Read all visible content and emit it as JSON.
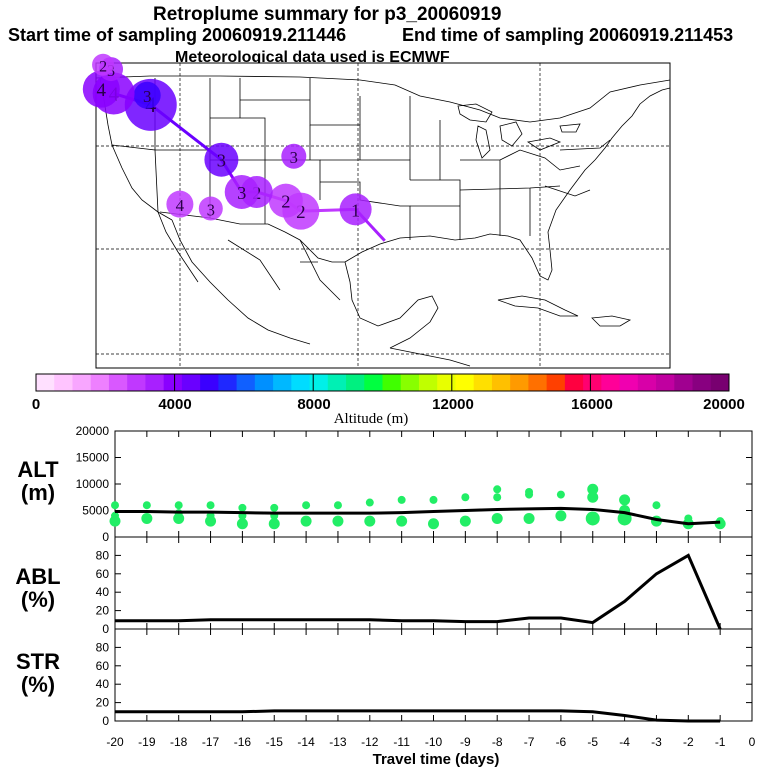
{
  "header": {
    "title": "Retroplume summary for p3_20060919",
    "start_label": "Start time of sampling 20060919.211446",
    "end_label": "End time of sampling 20060919.211453",
    "met_label": "Meteorological data used is ECMWF"
  },
  "map": {
    "projection": "lat-lon",
    "lon_range": [
      -125,
      -60
    ],
    "lat_range": [
      15,
      50
    ],
    "release_point": {
      "lon": -92.3,
      "lat": 29.6
    },
    "plume_numbers": [
      {
        "label": "1",
        "lon": -95.6,
        "lat": 33.2,
        "alt_m": 3500,
        "size": 2
      },
      {
        "label": "2",
        "lon": -101.8,
        "lat": 33.0,
        "alt_m": 2800,
        "size": 2.5
      },
      {
        "label": "2",
        "lon": -103.5,
        "lat": 34.2,
        "alt_m": 3000,
        "size": 2.2
      },
      {
        "label": "2",
        "lon": -106.8,
        "lat": 35.2,
        "alt_m": 3300,
        "size": 2
      },
      {
        "label": "3",
        "lon": -108.5,
        "lat": 35.2,
        "alt_m": 3400,
        "size": 2.2
      },
      {
        "label": "3",
        "lon": -110.8,
        "lat": 38.9,
        "alt_m": 4300,
        "size": 2.2
      },
      {
        "label": "3",
        "lon": -102.6,
        "lat": 39.3,
        "alt_m": 3200,
        "size": 1.3
      },
      {
        "label": "3",
        "lon": -112.0,
        "lat": 33.3,
        "alt_m": 3000,
        "size": 1.2
      },
      {
        "label": "4",
        "lon": -115.5,
        "lat": 33.8,
        "alt_m": 3000,
        "size": 1.5
      },
      {
        "label": "4",
        "lon": -118.8,
        "lat": 45.2,
        "alt_m": 4500,
        "size": 4
      },
      {
        "label": "3",
        "lon": -119.2,
        "lat": 46.3,
        "alt_m": 5000,
        "size": 1.5
      },
      {
        "label": "4",
        "lon": -123.0,
        "lat": 46.5,
        "alt_m": 4000,
        "size": 3
      },
      {
        "label": "4",
        "lon": -124.4,
        "lat": 47.0,
        "alt_m": 3800,
        "size": 2.5
      },
      {
        "label": "3",
        "lon": -123.3,
        "lat": 49.3,
        "alt_m": 3500,
        "size": 1.2
      },
      {
        "label": "2",
        "lon": -124.2,
        "lat": 49.8,
        "alt_m": 3000,
        "size": 1
      }
    ]
  },
  "colorbar": {
    "label": "Altitude (m)",
    "ticks": [
      "0",
      "4000",
      "8000",
      "12000",
      "16000",
      "20000"
    ],
    "min": 0,
    "max": 20000,
    "colors": [
      "#ffe0ff",
      "#ffc4ff",
      "#f8a6ff",
      "#ee80ff",
      "#d958ff",
      "#c038ff",
      "#a820ff",
      "#8a00ff",
      "#6a00ff",
      "#3a00ff",
      "#1f28ff",
      "#1060ff",
      "#0090ff",
      "#00b8ff",
      "#00dcff",
      "#00f0e8",
      "#00f0b4",
      "#00f080",
      "#00ff40",
      "#40ff00",
      "#88ff00",
      "#c0ff00",
      "#e8ff00",
      "#ffff00",
      "#ffe000",
      "#ffc000",
      "#ff9a00",
      "#ff7000",
      "#ff4000",
      "#ff0040",
      "#ff0070",
      "#ff0098",
      "#f000b0",
      "#d800a8",
      "#c000a0",
      "#a00090",
      "#880080",
      "#780070"
    ]
  },
  "chart_data": [
    {
      "type": "line",
      "panel": "ALT",
      "ylabel": "ALT\n(m)",
      "ylabel_line1": "ALT",
      "ylabel_line2": "(m)",
      "ylim": [
        0,
        20000
      ],
      "yticks": [
        "0",
        "5000",
        "10000",
        "15000",
        "20000"
      ],
      "xlim": [
        -20,
        0
      ],
      "x": [
        -20,
        -19,
        -18,
        -17,
        -16,
        -15,
        -14,
        -13,
        -12,
        -11,
        -10,
        -9,
        -8,
        -7,
        -6,
        -5,
        -4,
        -3,
        -2,
        -1
      ],
      "mean_altitude": [
        4800,
        4800,
        4700,
        4700,
        4600,
        4500,
        4500,
        4500,
        4500,
        4600,
        4800,
        5000,
        5200,
        5300,
        5400,
        5200,
        4600,
        3300,
        2500,
        2800
      ],
      "plume_points": [
        {
          "x": -20,
          "y": [
            3000,
            4000,
            6000
          ]
        },
        {
          "x": -19,
          "y": [
            3500,
            6000
          ]
        },
        {
          "x": -18,
          "y": [
            3500,
            4500,
            6000
          ]
        },
        {
          "x": -17,
          "y": [
            3000,
            4000,
            6000
          ]
        },
        {
          "x": -16,
          "y": [
            2500,
            4000,
            5500
          ]
        },
        {
          "x": -15,
          "y": [
            2500,
            4000,
            5500
          ]
        },
        {
          "x": -14,
          "y": [
            3000,
            6000
          ]
        },
        {
          "x": -13,
          "y": [
            3000,
            6000
          ]
        },
        {
          "x": -12,
          "y": [
            3000,
            6500
          ]
        },
        {
          "x": -11,
          "y": [
            3000,
            7000
          ]
        },
        {
          "x": -10,
          "y": [
            2500,
            7000
          ]
        },
        {
          "x": -9,
          "y": [
            3000,
            7500
          ]
        },
        {
          "x": -8,
          "y": [
            3500,
            7500,
            9000
          ]
        },
        {
          "x": -7,
          "y": [
            3500,
            8000,
            8500
          ]
        },
        {
          "x": -6,
          "y": [
            4000,
            8000
          ]
        },
        {
          "x": -5,
          "y": [
            3500,
            7500,
            9000
          ]
        },
        {
          "x": -4,
          "y": [
            3500,
            5000,
            7000
          ]
        },
        {
          "x": -3,
          "y": [
            3000,
            6000
          ]
        },
        {
          "x": -2,
          "y": [
            2500,
            3500
          ]
        },
        {
          "x": -1,
          "y": [
            2500,
            3000
          ]
        }
      ]
    },
    {
      "type": "line",
      "panel": "ABL",
      "ylabel_line1": "ABL",
      "ylabel_line2": "(%)",
      "ylim": [
        0,
        100
      ],
      "yticks": [
        "0",
        "20",
        "40",
        "60",
        "80"
      ],
      "xlim": [
        -20,
        0
      ],
      "x": [
        -20,
        -19,
        -18,
        -17,
        -16,
        -15,
        -14,
        -13,
        -12,
        -11,
        -10,
        -9,
        -8,
        -7,
        -6,
        -5,
        -4,
        -3,
        -2,
        -1
      ],
      "values": [
        9,
        9,
        9,
        10,
        10,
        10,
        10,
        10,
        10,
        9,
        9,
        8,
        8,
        12,
        12,
        7,
        30,
        60,
        80,
        0
      ]
    },
    {
      "type": "line",
      "panel": "STR",
      "ylabel_line1": "STR",
      "ylabel_line2": "(%)",
      "ylim": [
        0,
        100
      ],
      "yticks": [
        "0",
        "20",
        "40",
        "60",
        "80"
      ],
      "xlim": [
        -20,
        0
      ],
      "x": [
        -20,
        -19,
        -18,
        -17,
        -16,
        -15,
        -14,
        -13,
        -12,
        -11,
        -10,
        -9,
        -8,
        -7,
        -6,
        -5,
        -4,
        -3,
        -2,
        -1
      ],
      "values": [
        10,
        10,
        10,
        10,
        10,
        11,
        11,
        11,
        11,
        11,
        11,
        11,
        11,
        11,
        11,
        10,
        6,
        1,
        0,
        0
      ]
    }
  ],
  "xaxis": {
    "label": "Travel time (days)",
    "ticks": [
      "-20",
      "-19",
      "-18",
      "-17",
      "-16",
      "-15",
      "-14",
      "-13",
      "-12",
      "-11",
      "-10",
      "-9",
      "-8",
      "-7",
      "-6",
      "-5",
      "-4",
      "-3",
      "-2",
      "-1",
      "0"
    ]
  }
}
